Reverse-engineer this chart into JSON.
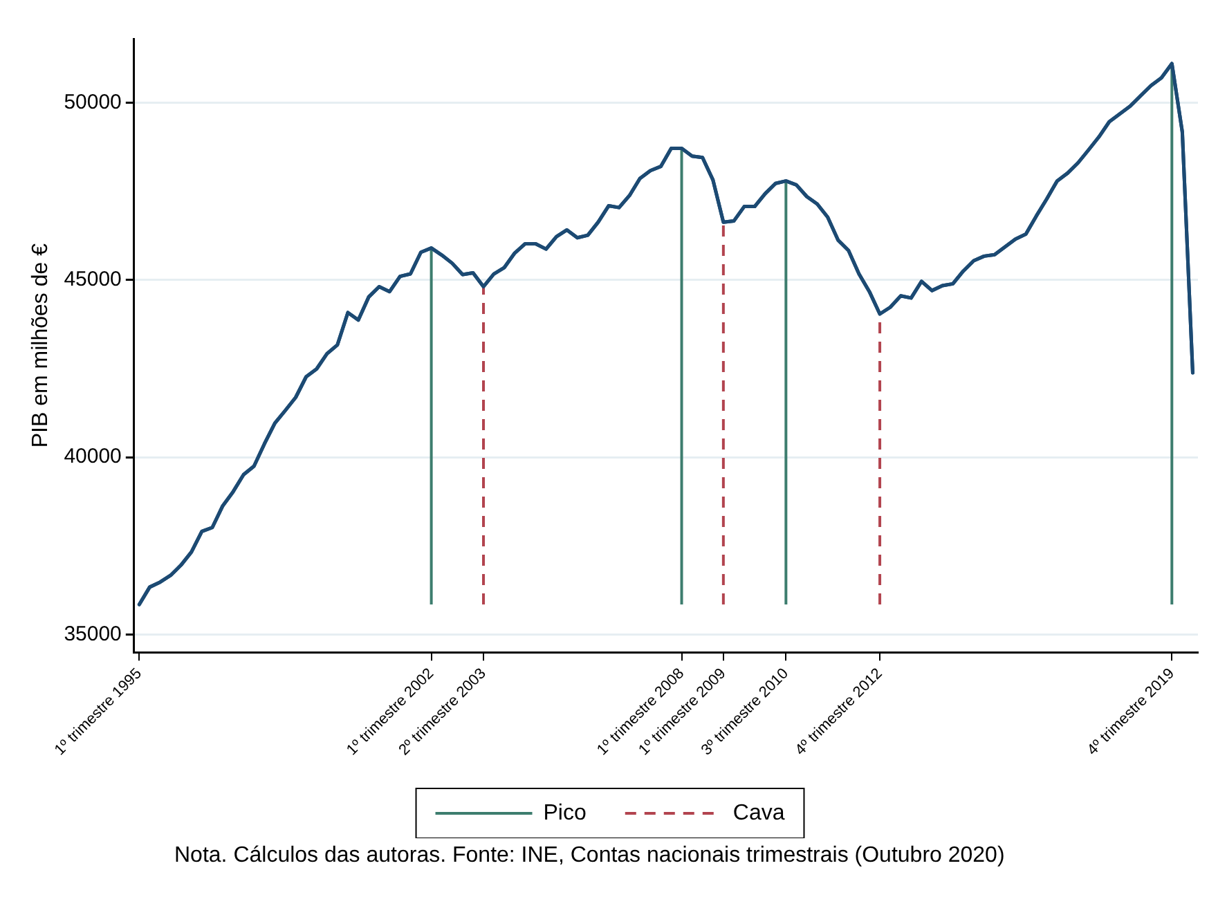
{
  "chart_data": {
    "type": "line",
    "ylabel": "PIB em milhões de €",
    "categories": [
      "1º trimestre 1995",
      null,
      null,
      null,
      null,
      null,
      null,
      null,
      null,
      null,
      null,
      null,
      null,
      null,
      null,
      null,
      null,
      null,
      null,
      null,
      null,
      null,
      null,
      null,
      null,
      null,
      null,
      null,
      "1º trimestre 2002",
      null,
      null,
      null,
      null,
      "2º trimestre 2003",
      null,
      null,
      null,
      null,
      null,
      null,
      null,
      null,
      null,
      null,
      null,
      null,
      null,
      null,
      null,
      null,
      null,
      null,
      "1º trimestre 2008",
      null,
      null,
      null,
      "1º trimestre 2009",
      null,
      null,
      null,
      null,
      null,
      "3º trimestre 2010",
      null,
      null,
      null,
      null,
      null,
      null,
      null,
      null,
      "4º trimestre 2012",
      null,
      null,
      null,
      null,
      null,
      null,
      null,
      null,
      null,
      null,
      null,
      null,
      null,
      null,
      null,
      null,
      null,
      null,
      null,
      null,
      null,
      null,
      null,
      null,
      null,
      null,
      null,
      "4º trimestre 2019",
      null,
      null
    ],
    "series": [
      {
        "color": "#1c4a73",
        "values": [
          35850,
          36340,
          36480,
          36670,
          36960,
          37330,
          37910,
          38020,
          38630,
          39030,
          39510,
          39750,
          40380,
          40960,
          41320,
          41690,
          42270,
          42490,
          42920,
          43170,
          44080,
          43870,
          44520,
          44810,
          44670,
          45100,
          45170,
          45780,
          45900,
          45700,
          45470,
          45150,
          45200,
          44810,
          45170,
          45350,
          45760,
          46020,
          46020,
          45870,
          46220,
          46410,
          46190,
          46260,
          46630,
          47090,
          47040,
          47380,
          47860,
          48080,
          48200,
          48710,
          48710,
          48490,
          48450,
          47820,
          46630,
          46660,
          47070,
          47070,
          47430,
          47720,
          47790,
          47680,
          47350,
          47140,
          46770,
          46120,
          45830,
          45170,
          44670,
          44040,
          44230,
          44550,
          44490,
          44960,
          44700,
          44840,
          44890,
          45250,
          45540,
          45670,
          45710,
          45930,
          46150,
          46290,
          46800,
          47280,
          47790,
          48010,
          48300,
          48660,
          49030,
          49460,
          49680,
          49900,
          50190,
          50480,
          50700,
          51100,
          49170,
          42380
        ]
      }
    ],
    "ylim": [
      34500,
      51800
    ],
    "yticks": [
      35000,
      40000,
      45000,
      50000
    ],
    "grid": "y",
    "legend": "bottom",
    "marker": "none",
    "line_style": "solid",
    "ref_lines": [
      {
        "axis": "x",
        "value": "1º trimestre 2002",
        "label": "Pico",
        "color": "#3d7d6e",
        "line_style": "solid"
      },
      {
        "axis": "x",
        "value": "2º trimestre 2003",
        "label": "Cava",
        "color": "#b2444f",
        "line_style": "dashed"
      },
      {
        "axis": "x",
        "value": "1º trimestre 2008",
        "color": "#3d7d6e",
        "line_style": "solid"
      },
      {
        "axis": "x",
        "value": "1º trimestre 2009",
        "color": "#b2444f",
        "line_style": "dashed"
      },
      {
        "axis": "x",
        "value": "3º trimestre 2010",
        "color": "#3d7d6e",
        "line_style": "solid"
      },
      {
        "axis": "x",
        "value": "4º trimestre 2012",
        "color": "#b2444f",
        "line_style": "dashed"
      },
      {
        "axis": "x",
        "value": "4º trimestre 2019",
        "color": "#3d7d6e",
        "line_style": "solid"
      }
    ],
    "annotations": [
      "Nota. Cálculos das autoras. Fonte: INE, Contas nacionais trimestrais (Outubro 2020)"
    ]
  }
}
